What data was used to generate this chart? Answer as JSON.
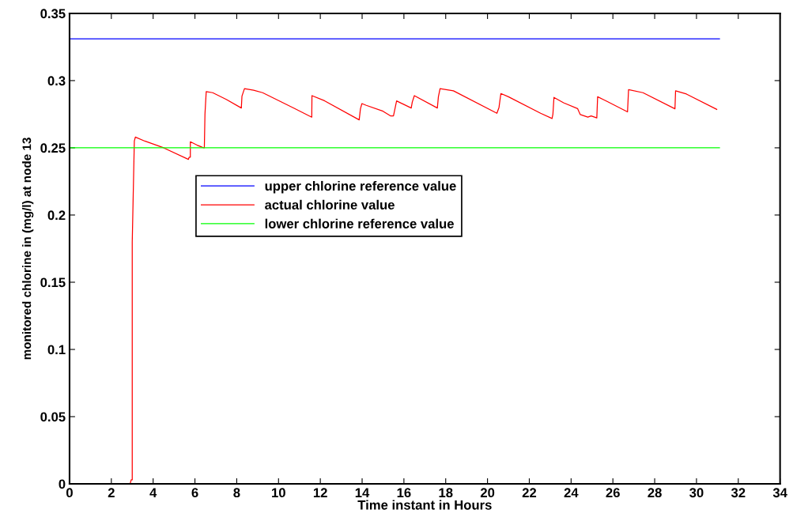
{
  "chart_data": {
    "type": "line",
    "xlabel": "Time instant in Hours",
    "ylabel": "monitored chlorine in (mg/l) at node 13",
    "xlim": [
      0,
      34
    ],
    "xticks": [
      0,
      2,
      4,
      6,
      8,
      10,
      12,
      14,
      16,
      18,
      20,
      22,
      24,
      26,
      28,
      30,
      32,
      34
    ],
    "ylim": [
      0,
      0.35
    ],
    "yticks": [
      0,
      0.05,
      0.1,
      0.15,
      0.2,
      0.25,
      0.3,
      0.35
    ],
    "grid": false,
    "legend": "upper left",
    "marker": "none",
    "line_style": "solid",
    "series": [
      {
        "name": "upper chlorine reference value",
        "color": "#0000ff",
        "x": [
          0,
          31.1
        ],
        "values": [
          0.331,
          0.331
        ]
      },
      {
        "name": "actual chlorine value",
        "color": "#ff0000",
        "x": [
          0,
          2.9,
          2.95,
          2.95,
          3.0,
          3.0,
          3.1,
          3.15,
          3.6,
          4.5,
          5.69,
          5.72,
          5.78,
          5.78,
          6.1,
          6.42,
          6.45,
          6.48,
          6.54,
          6.85,
          7.5,
          8.22,
          8.25,
          8.37,
          8.81,
          9.24,
          10.77,
          11.59,
          11.6,
          12.2,
          13.86,
          13.92,
          13.99,
          14.2,
          15.0,
          15.37,
          15.5,
          15.55,
          15.65,
          16.35,
          16.4,
          16.5,
          17.6,
          17.65,
          17.73,
          18.37,
          20.45,
          20.55,
          20.64,
          21.0,
          22.54,
          23.09,
          23.13,
          23.18,
          23.64,
          24.31,
          24.38,
          24.44,
          24.8,
          24.96,
          25.23,
          25.27,
          25.72,
          26.7,
          26.75,
          27.44,
          28.97,
          29.0,
          29.52,
          30.97
        ],
        "values": [
          0,
          0,
          0.003,
          0.003,
          0.003,
          0.18,
          0.255,
          0.258,
          0.255,
          0.25,
          0.2414,
          0.243,
          0.243,
          0.2545,
          0.252,
          0.25,
          0.25,
          0.275,
          0.2918,
          0.291,
          0.286,
          0.2796,
          0.2884,
          0.294,
          0.2928,
          0.291,
          0.2792,
          0.2728,
          0.2888,
          0.285,
          0.2708,
          0.279,
          0.2829,
          0.2816,
          0.2772,
          0.2737,
          0.2737,
          0.2774,
          0.2849,
          0.2796,
          0.284,
          0.2888,
          0.2796,
          0.288,
          0.294,
          0.2924,
          0.2757,
          0.28,
          0.2904,
          0.288,
          0.2757,
          0.2718,
          0.275,
          0.2875,
          0.2835,
          0.2792,
          0.2767,
          0.2747,
          0.2728,
          0.2737,
          0.2722,
          0.288,
          0.2845,
          0.2767,
          0.2933,
          0.291,
          0.279,
          0.2924,
          0.29,
          0.2786
        ]
      },
      {
        "name": "lower chlorine reference value",
        "color": "#00ff00",
        "x": [
          0,
          31.1
        ],
        "values": [
          0.25,
          0.25
        ]
      }
    ]
  }
}
